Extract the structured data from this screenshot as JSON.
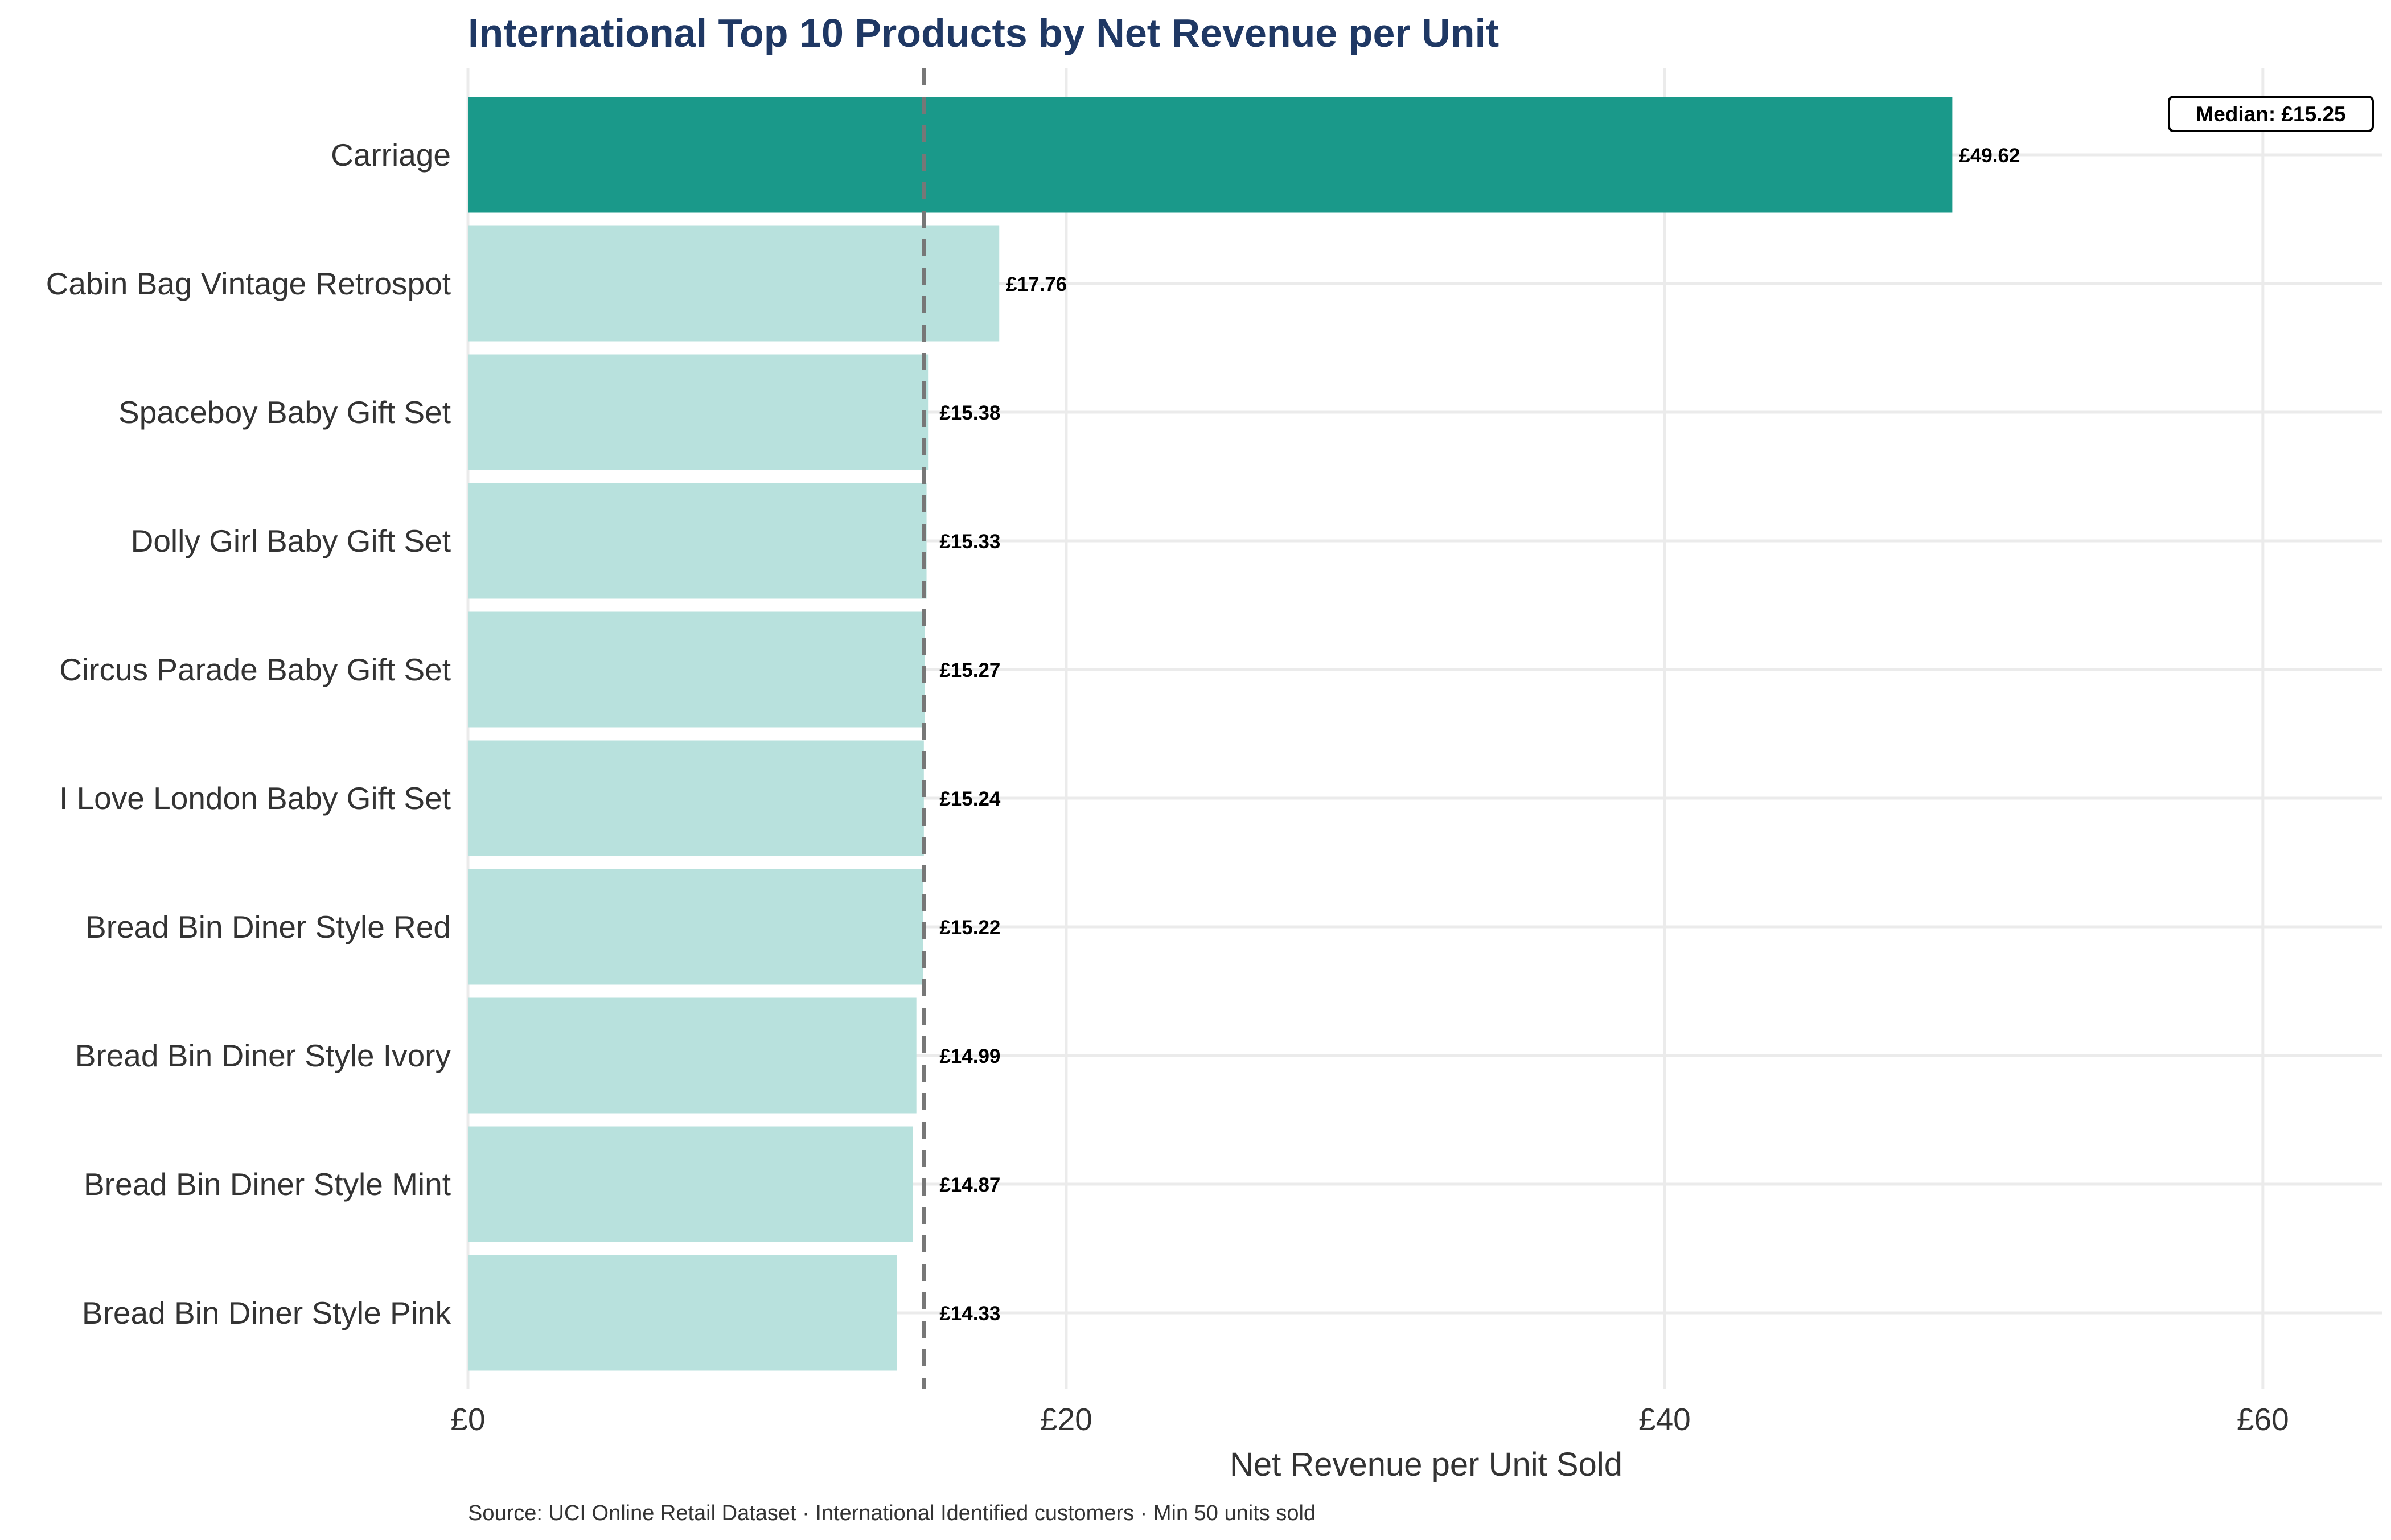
{
  "colors": {
    "highlight": "#1a998a",
    "bar": "#b8e1dd",
    "title": "#1f3864",
    "grid": "#ebebeb",
    "median_line": "#777777"
  },
  "chart_data": {
    "type": "bar",
    "orientation": "horizontal",
    "title": "International Top 10 Products by Net Revenue per Unit",
    "xlabel": "Net Revenue per Unit Sold",
    "ylabel": "",
    "xlim": [
      0,
      64
    ],
    "x_ticks": [
      0,
      20,
      40,
      60
    ],
    "x_tick_labels": [
      "£0",
      "£20",
      "£40",
      "£60"
    ],
    "grid": true,
    "categories": [
      "Carriage",
      "Cabin Bag Vintage Retrospot",
      "Spaceboy Baby Gift Set",
      "Dolly Girl Baby Gift Set",
      "Circus Parade Baby Gift Set",
      "I Love London Baby Gift Set",
      "Bread Bin Diner Style Red",
      "Bread Bin Diner Style Ivory",
      "Bread Bin Diner Style Mint",
      "Bread Bin Diner Style Pink"
    ],
    "values": [
      49.62,
      17.76,
      15.38,
      15.33,
      15.27,
      15.24,
      15.22,
      14.99,
      14.87,
      14.33
    ],
    "value_labels": [
      "£49.62",
      "£17.76",
      "£15.38",
      "£15.33",
      "£15.27",
      "£15.24",
      "£15.22",
      "£14.99",
      "£14.87",
      "£14.33"
    ],
    "highlighted_index": 0,
    "median": 15.25,
    "median_label": "Median: £15.25",
    "caption": "Source: UCI Online Retail Dataset · International Identified customers · Min 50 units sold"
  }
}
